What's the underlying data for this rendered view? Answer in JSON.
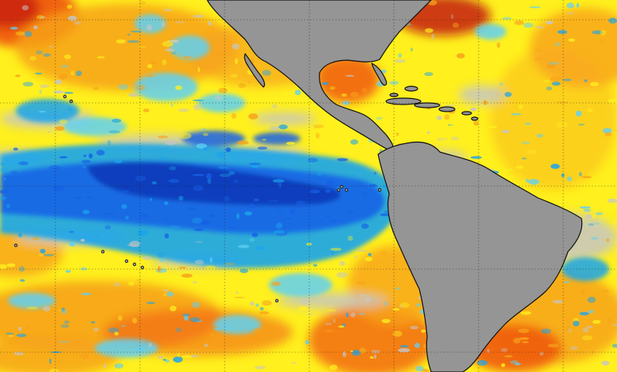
{
  "map": {
    "colors": {
      "land": "#959595",
      "neutral": "#c6c6c6",
      "warm_strong": "#c0140e",
      "warm_mid": "#f05a10",
      "warm": "#f7a21b",
      "warm_light": "#fff01e",
      "cool_light": "#5fd0f5",
      "cool": "#1aa4ec",
      "cool_strong": "#1660e6",
      "cool_deep": "#0a2eb0",
      "coastline": "#111111",
      "graticule": "#1b1b1b"
    }
  }
}
